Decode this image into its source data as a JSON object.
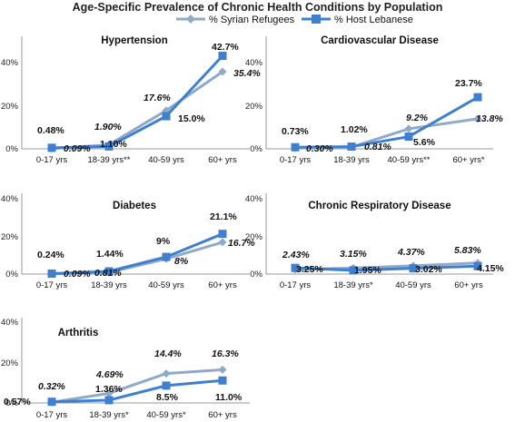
{
  "title": "Age-Specific Prevalence of Chronic Health Conditions by Population",
  "legend": [
    {
      "label": "% Syrian Refugees",
      "color": "#8FA9C9",
      "marker": "diamond"
    },
    {
      "label": "% Host Lebanese",
      "color": "#3F7FD0",
      "marker": "square"
    }
  ],
  "chart_data": [
    {
      "type": "line",
      "title": "Hypertension",
      "categories": [
        "0-17 yrs",
        "18-39 yrs**",
        "40-59 yrs",
        "60+ yrs"
      ],
      "yticks": [
        "0%",
        "20%",
        "40%"
      ],
      "ylim": [
        0,
        0.45
      ],
      "series": [
        {
          "name": "% Syrian Refugees",
          "values": [
            0.0009,
            0.019,
            0.176,
            0.354
          ],
          "labels": [
            "0.09%",
            "1.90%",
            "17.6%",
            "35.4%"
          ]
        },
        {
          "name": "% Host Lebanese",
          "values": [
            0.0048,
            0.011,
            0.15,
            0.427
          ],
          "labels": [
            "0.48%",
            "1.10%",
            "15.0%",
            "42.7%"
          ]
        }
      ]
    },
    {
      "type": "line",
      "title": "Cardiovascular Disease",
      "categories": [
        "0-17 yrs",
        "18-39 yrs",
        "40-59 yrs**",
        "60+ yrs*"
      ],
      "yticks": [
        "0%",
        "20%",
        "40%"
      ],
      "ylim": [
        0,
        0.45
      ],
      "series": [
        {
          "name": "% Syrian Refugees",
          "values": [
            0.003,
            0.0081,
            0.092,
            0.138
          ],
          "labels": [
            "0.30%",
            "0.81%",
            "9.2%",
            "13.8%"
          ]
        },
        {
          "name": "% Host Lebanese",
          "values": [
            0.0073,
            0.0102,
            0.056,
            0.237
          ],
          "labels": [
            "0.73%",
            "1.02%",
            "5.6%",
            "23.7%"
          ]
        }
      ]
    },
    {
      "type": "line",
      "title": "Diabetes",
      "categories": [
        "0-17 yrs",
        "18-39 yrs",
        "40-59 yrs",
        "60+ yrs"
      ],
      "yticks": [
        "0%",
        "20%",
        "40%"
      ],
      "ylim": [
        0,
        0.45
      ],
      "series": [
        {
          "name": "% Syrian Refugees",
          "values": [
            0.0009,
            0.0081,
            0.08,
            0.167
          ],
          "labels": [
            "0.09%",
            "0.81%",
            "8%",
            "16.7%"
          ]
        },
        {
          "name": "% Host Lebanese",
          "values": [
            0.0024,
            0.0144,
            0.09,
            0.211
          ],
          "labels": [
            "0.24%",
            "1.44%",
            "9%",
            "21.1%"
          ]
        }
      ]
    },
    {
      "type": "line",
      "title": "Chronic Respiratory Disease",
      "categories": [
        "0-17 yrs",
        "18-39 yrs*",
        "40-59 yrs",
        "60+ yrs"
      ],
      "yticks": [
        "0%",
        "20%",
        "40%"
      ],
      "ylim": [
        0,
        0.45
      ],
      "series": [
        {
          "name": "% Syrian Refugees",
          "values": [
            0.0243,
            0.0315,
            0.0437,
            0.0583
          ],
          "labels": [
            "2.43%",
            "3.15%",
            "4.37%",
            "5.83%"
          ]
        },
        {
          "name": "% Host Lebanese",
          "values": [
            0.0325,
            0.0195,
            0.0302,
            0.0415
          ],
          "labels": [
            "3.25%",
            "1.95%",
            "3.02%",
            "4.15%"
          ]
        }
      ]
    },
    {
      "type": "line",
      "title": "Arthritis",
      "categories": [
        "0-17 yrs",
        "18-39 yrs*",
        "40-59 yrs*",
        "60+ yrs"
      ],
      "yticks": [
        "0%",
        "20%",
        "40%"
      ],
      "ylim": [
        0,
        0.45
      ],
      "series": [
        {
          "name": "% Syrian Refugees",
          "values": [
            0.0032,
            0.0469,
            0.144,
            0.163
          ],
          "labels": [
            "0.32%",
            "4.69%",
            "14.4%",
            "16.3%"
          ]
        },
        {
          "name": "% Host Lebanese",
          "values": [
            0.0057,
            0.0136,
            0.085,
            0.11
          ],
          "labels": [
            "0.57%",
            "1.36%",
            "8.5%",
            "11.0%"
          ]
        }
      ]
    }
  ]
}
